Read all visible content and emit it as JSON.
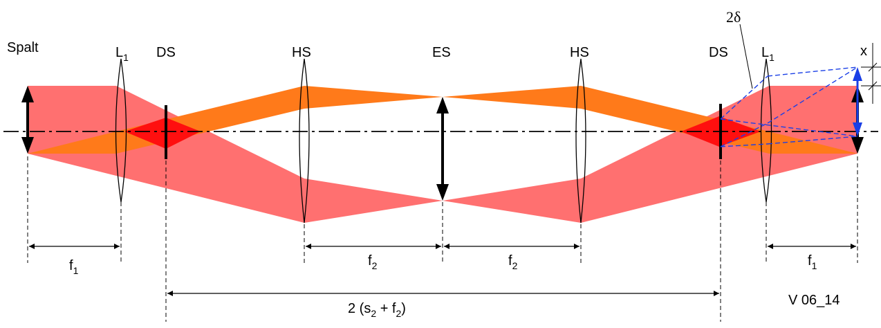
{
  "labels": {
    "spalt": "Spalt",
    "l1_left": "L",
    "l1_left_sub": "1",
    "ds_left": "DS",
    "hs_left": "HS",
    "es": "ES",
    "hs_right": "HS",
    "ds_right": "DS",
    "l1_right": "L",
    "l1_right_sub": "1",
    "two_delta": "2δ",
    "x": "x"
  },
  "dimensions": {
    "f1_left": "f",
    "f1_left_sub": "1",
    "f2_left": "f",
    "f2_left_sub": "2",
    "f2_right": "f",
    "f2_right_sub": "2",
    "f1_right": "f",
    "f1_right_sub": "1",
    "total_pre": "2 (s",
    "total_s_sub": "2",
    "total_mid": " + f",
    "total_f_sub": "2",
    "total_post": ")"
  },
  "figure_id": "V 06_14",
  "colors": {
    "beam_pink": "#ff7070",
    "beam_orange": "#ff7a1a",
    "overlap_red": "#ff0f0f",
    "dashed_blue": "#1a3fe6",
    "arrow_blue": "#1a3fe6"
  }
}
